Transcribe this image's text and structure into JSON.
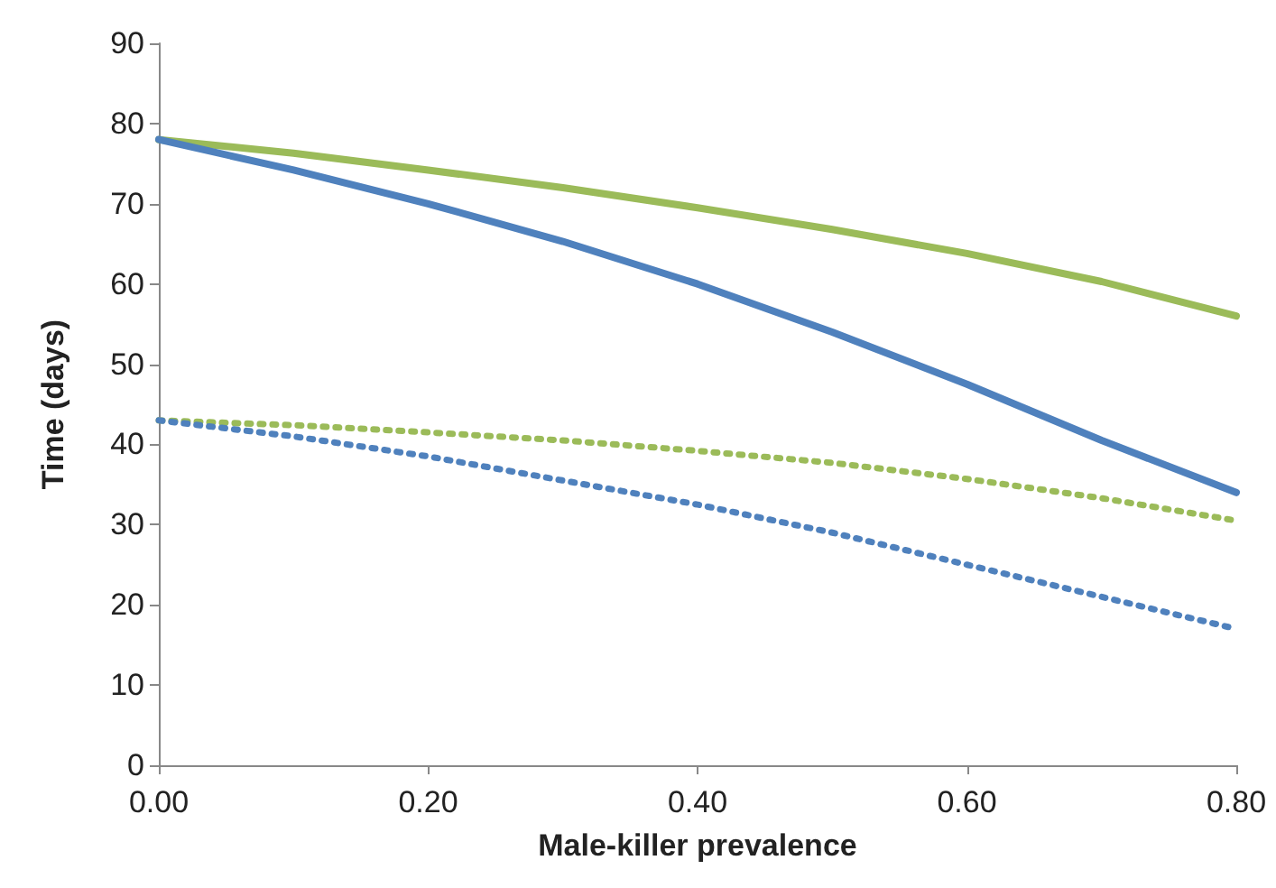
{
  "chart_data": {
    "type": "line",
    "xlabel": "Male-killer prevalence",
    "ylabel": "Time (days)",
    "x": [
      0,
      0.1,
      0.2,
      0.3,
      0.4,
      0.5,
      0.6,
      0.7,
      0.8
    ],
    "series": [
      {
        "color": "#9bbb59",
        "line_style": "solid",
        "values": [
          78,
          76.3,
          74.2,
          72,
          69.5,
          66.8,
          63.8,
          60.3,
          56
        ]
      },
      {
        "color": "#4f81bd",
        "line_style": "solid",
        "values": [
          78,
          74.2,
          70,
          65.3,
          60,
          54,
          47.5,
          40.5,
          34
        ]
      },
      {
        "color": "#9bbb59",
        "line_style": "dotted",
        "values": [
          43,
          42.4,
          41.5,
          40.5,
          39.2,
          37.7,
          35.7,
          33.3,
          30.5
        ]
      },
      {
        "color": "#4f81bd",
        "line_style": "dotted",
        "values": [
          43,
          41,
          38.5,
          35.5,
          32.5,
          29,
          25,
          21,
          17
        ]
      }
    ],
    "xlim": [
      0,
      0.8
    ],
    "xticks": [
      {
        "value": 0,
        "label": "0.00"
      },
      {
        "value": 0.2,
        "label": "0.20"
      },
      {
        "value": 0.4,
        "label": "0.40"
      },
      {
        "value": 0.6,
        "label": "0.60"
      },
      {
        "value": 0.8,
        "label": "0.80"
      }
    ],
    "ylim": [
      0,
      90
    ],
    "yticks": [
      0,
      10,
      20,
      30,
      40,
      50,
      60,
      70,
      80,
      90
    ],
    "grid": false,
    "marker": "none"
  }
}
